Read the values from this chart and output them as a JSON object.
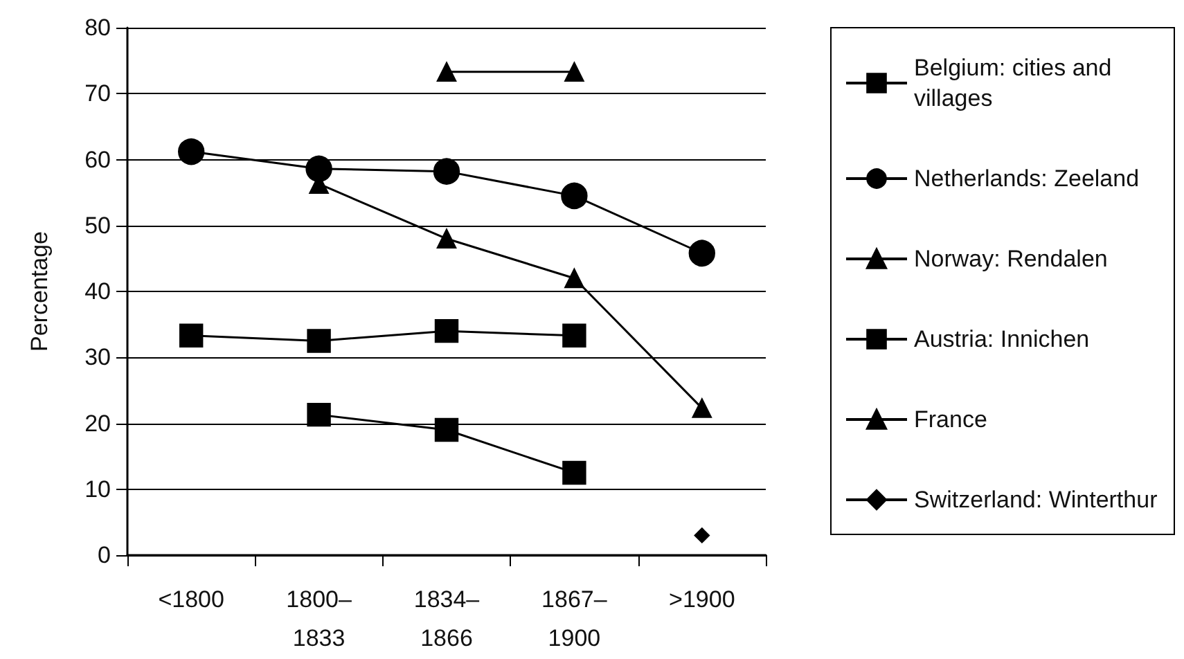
{
  "chart_data": {
    "type": "line",
    "ylabel": "Percentage",
    "categories": [
      "<1800",
      "1800–1833",
      "1834–1866",
      "1867–1900",
      ">1900"
    ],
    "series": [
      {
        "name": "Belgium: cities and villages",
        "color": "#000000",
        "marker": "square",
        "values": [
          null,
          21.3,
          19,
          12.5,
          null
        ]
      },
      {
        "name": "Netherlands: Zeeland",
        "color": "#000000",
        "marker": "circle",
        "values": [
          61.2,
          58.6,
          58.2,
          54.5,
          45.8
        ]
      },
      {
        "name": "Norway: Rendalen",
        "color": "#000000",
        "marker": "triangle",
        "values": [
          null,
          null,
          73.3,
          73.3,
          null
        ]
      },
      {
        "name": "Austria: Innichen",
        "color": "#000000",
        "marker": "square",
        "values": [
          33.3,
          32.5,
          34,
          33.3,
          null
        ]
      },
      {
        "name": "France",
        "color": "#000000",
        "marker": "triangle",
        "values": [
          null,
          56.3,
          48,
          42,
          22.3
        ]
      },
      {
        "name": "Switzerland: Winterthur",
        "color": "#000000",
        "marker": "diamond",
        "values": [
          null,
          null,
          null,
          null,
          3
        ]
      }
    ],
    "ylim": [
      0,
      80
    ],
    "yticks": [
      0,
      10,
      20,
      30,
      40,
      50,
      60,
      70,
      80
    ],
    "grid": "y",
    "legend": "right",
    "line_style": "solid"
  }
}
